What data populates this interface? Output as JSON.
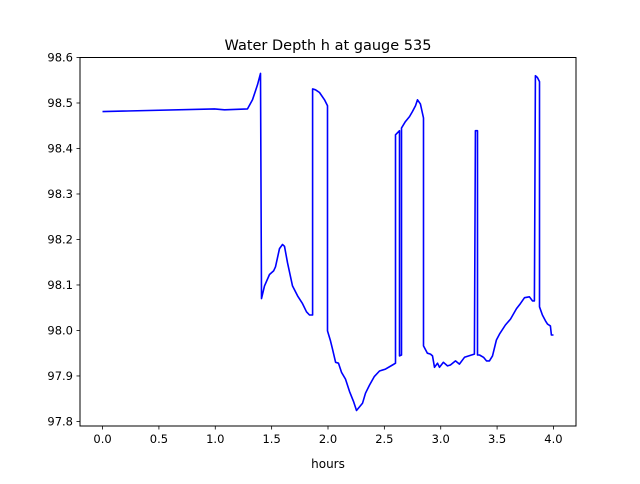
{
  "chart_data": {
    "type": "line",
    "title": "Water Depth h at gauge 535",
    "xlabel": "hours",
    "ylabel": "",
    "xlim": [
      -0.2,
      4.2
    ],
    "ylim": [
      97.79,
      98.6
    ],
    "xticks": [
      0.0,
      0.5,
      1.0,
      1.5,
      2.0,
      2.5,
      3.0,
      3.5,
      4.0
    ],
    "xtick_labels": [
      "0.0",
      "0.5",
      "1.0",
      "1.5",
      "2.0",
      "2.5",
      "3.0",
      "3.5",
      "4.0"
    ],
    "yticks": [
      97.8,
      97.9,
      98.0,
      98.1,
      98.2,
      98.3,
      98.4,
      98.5,
      98.6
    ],
    "ytick_labels": [
      "97.8",
      "97.9",
      "98.0",
      "98.1",
      "98.2",
      "98.3",
      "98.4",
      "98.5",
      "98.6"
    ],
    "grid": false,
    "series": [
      {
        "name": "h",
        "color": "#0000ff",
        "x": [
          0,
          0.993,
          1.082,
          1.286,
          1.33,
          1.375,
          1.401,
          1.41,
          1.437,
          1.481,
          1.517,
          1.534,
          1.57,
          1.596,
          1.614,
          1.641,
          1.685,
          1.73,
          1.774,
          1.809,
          1.836,
          1.863,
          1.863,
          1.889,
          1.925,
          1.969,
          1.996,
          1.996,
          2.022,
          2.04,
          2.067,
          2.093,
          2.12,
          2.155,
          2.191,
          2.226,
          2.253,
          2.306,
          2.333,
          2.368,
          2.412,
          2.457,
          2.51,
          2.572,
          2.599,
          2.599,
          2.634,
          2.634,
          2.652,
          2.652,
          2.687,
          2.723,
          2.749,
          2.776,
          2.794,
          2.82,
          2.847,
          2.847,
          2.882,
          2.909,
          2.927,
          2.945,
          2.971,
          2.989,
          3.024,
          3.06,
          3.086,
          3.131,
          3.166,
          3.211,
          3.273,
          3.299,
          3.308,
          3.326,
          3.326,
          3.344,
          3.379,
          3.406,
          3.432,
          3.459,
          3.494,
          3.521,
          3.574,
          3.619,
          3.672,
          3.707,
          3.743,
          3.787,
          3.814,
          3.831,
          3.84,
          3.858,
          3.876,
          3.876,
          3.902,
          3.929,
          3.947,
          3.973,
          3.982,
          4.0
        ],
        "y": [
          98.481,
          98.487,
          98.485,
          98.487,
          98.507,
          98.54,
          98.565,
          98.07,
          98.098,
          98.123,
          98.131,
          98.14,
          98.18,
          98.189,
          98.185,
          98.149,
          98.098,
          98.076,
          98.059,
          98.041,
          98.034,
          98.034,
          98.531,
          98.529,
          98.523,
          98.507,
          98.494,
          97.999,
          97.977,
          97.959,
          97.93,
          97.928,
          97.908,
          97.893,
          97.866,
          97.844,
          97.824,
          97.84,
          97.862,
          97.88,
          97.899,
          97.911,
          97.915,
          97.924,
          97.928,
          98.43,
          98.439,
          97.944,
          97.946,
          98.445,
          98.459,
          98.47,
          98.481,
          98.494,
          98.507,
          98.498,
          98.467,
          97.966,
          97.95,
          97.948,
          97.944,
          97.919,
          97.928,
          97.919,
          97.93,
          97.922,
          97.924,
          97.933,
          97.926,
          97.941,
          97.946,
          97.948,
          98.439,
          98.439,
          97.946,
          97.946,
          97.941,
          97.933,
          97.933,
          97.944,
          97.979,
          97.992,
          98.012,
          98.025,
          98.048,
          98.059,
          98.072,
          98.074,
          98.065,
          98.065,
          98.56,
          98.556,
          98.547,
          98.052,
          98.034,
          98.021,
          98.014,
          98.01,
          97.99,
          97.99
        ]
      }
    ]
  }
}
